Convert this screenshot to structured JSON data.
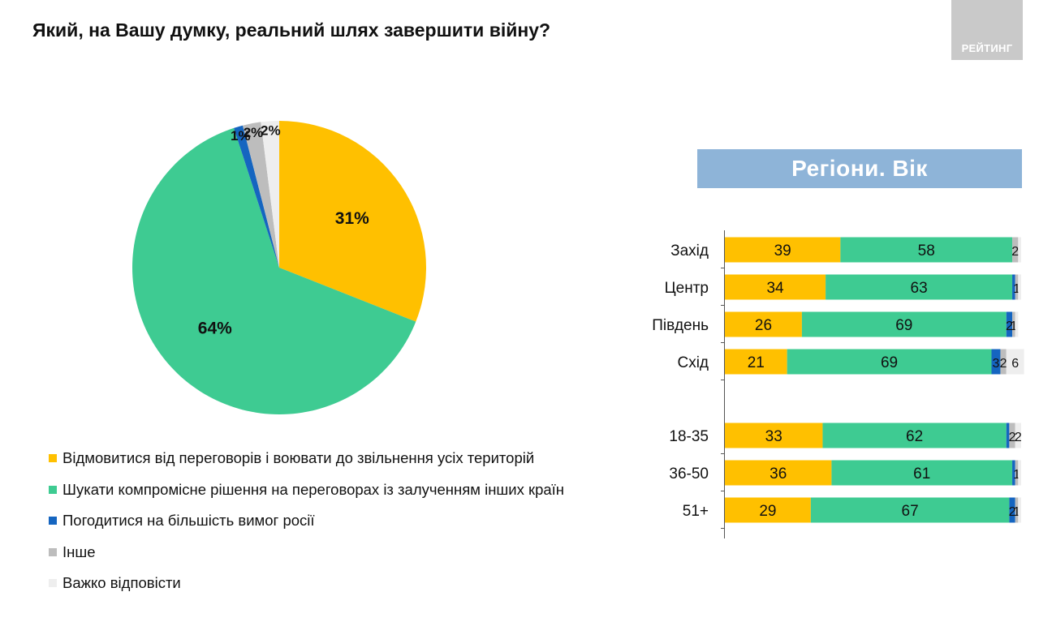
{
  "title": "Який, на Вашу думку, реальний шлях завершити війну?",
  "logo_text": "РЕЙТИНГ",
  "section_header": "Регіони. Вік",
  "colors": {
    "fight": "#ffc000",
    "compromise": "#3ecb92",
    "agree": "#1565c0",
    "other": "#bdbdbd",
    "hard": "#eeeeee"
  },
  "legend": [
    {
      "label": "Відмовитися від переговорів і воювати до звільнення усіх територій",
      "color": "#ffc000"
    },
    {
      "label": "Шукати компромісне рішення на переговорах із залученням інших країн",
      "color": "#3ecb92"
    },
    {
      "label": "Погодитися на більшість вимог росії",
      "color": "#1565c0"
    },
    {
      "label": "Інше",
      "color": "#bdbdbd"
    },
    {
      "label": "Важко відповісти",
      "color": "#eeeeee"
    }
  ],
  "chart_data": [
    {
      "type": "pie",
      "categories": [
        "Відмовитися від переговорів і воювати до звільнення усіх територій",
        "Шукати компромісне рішення на переговорах із залученням інших країн",
        "Погодитися на більшість вимог росії",
        "Інше",
        "Важко відповісти"
      ],
      "values": [
        31,
        64,
        1,
        2,
        2
      ],
      "labels": [
        "31%",
        "64%",
        "1%",
        "2%",
        "2%"
      ],
      "colors": [
        "#ffc000",
        "#3ecb92",
        "#1565c0",
        "#bdbdbd",
        "#eeeeee"
      ]
    },
    {
      "type": "bar",
      "orientation": "horizontal",
      "stacked": true,
      "groups": [
        {
          "categories": [
            "Захід",
            "Центр",
            "Південь",
            "Схід"
          ]
        },
        {
          "categories": [
            "18-35",
            "36-50",
            "51+"
          ]
        }
      ],
      "categories": [
        "Захід",
        "Центр",
        "Південь",
        "Схід",
        "18-35",
        "36-50",
        "51+"
      ],
      "series": [
        {
          "color": "#ffc000",
          "values": [
            39,
            34,
            26,
            21,
            33,
            36,
            29
          ],
          "labels": [
            "39",
            "34",
            "26",
            "21",
            "33",
            "36",
            "29"
          ]
        },
        {
          "color": "#3ecb92",
          "values": [
            58,
            63,
            69,
            69,
            62,
            61,
            67
          ],
          "labels": [
            "58",
            "63",
            "69",
            "69",
            "62",
            "61",
            "67"
          ]
        },
        {
          "color": "#1565c0",
          "values": [
            0,
            1,
            2,
            3,
            1,
            1,
            2
          ],
          "labels": [
            "",
            "",
            "2",
            "3",
            "",
            "",
            "2"
          ]
        },
        {
          "color": "#bdbdbd",
          "values": [
            2,
            1,
            1,
            2,
            2,
            1,
            1
          ],
          "labels": [
            "2",
            "1",
            "1",
            "2",
            "2",
            "1",
            "1"
          ]
        },
        {
          "color": "#eeeeee",
          "values": [
            1,
            1,
            1,
            6,
            2,
            1,
            1
          ],
          "labels": [
            "",
            "",
            "",
            "6",
            "2",
            "",
            ""
          ]
        }
      ],
      "xlim": [
        0,
        100
      ]
    }
  ]
}
